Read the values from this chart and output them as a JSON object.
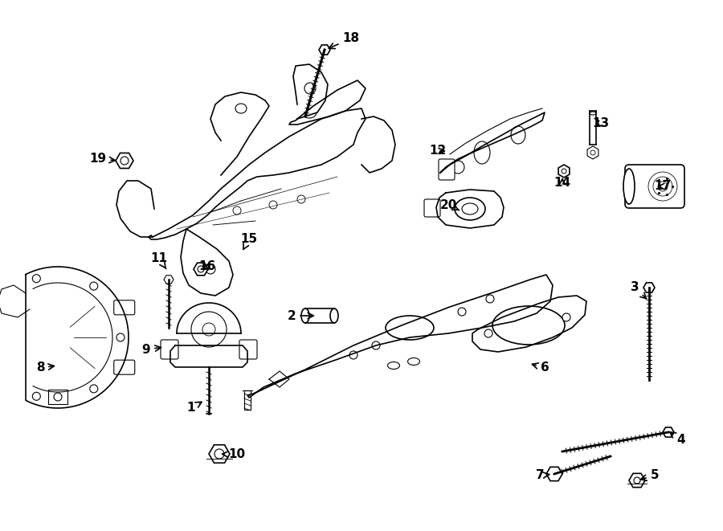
{
  "background_color": "#ffffff",
  "line_color": "#000000",
  "figsize": [
    9.0,
    6.61
  ],
  "dpi": 100,
  "callouts": [
    [
      1,
      238,
      508,
      255,
      498
    ],
    [
      2,
      363,
      393,
      395,
      393
    ],
    [
      3,
      790,
      358,
      808,
      375
    ],
    [
      4,
      848,
      548,
      830,
      535
    ],
    [
      5,
      815,
      592,
      793,
      598
    ],
    [
      6,
      678,
      458,
      658,
      452
    ],
    [
      7,
      672,
      592,
      688,
      590
    ],
    [
      8,
      50,
      458,
      72,
      455
    ],
    [
      9,
      182,
      435,
      205,
      432
    ],
    [
      10,
      295,
      566,
      272,
      565
    ],
    [
      11,
      198,
      322,
      207,
      335
    ],
    [
      12,
      545,
      188,
      558,
      188
    ],
    [
      13,
      748,
      153,
      738,
      160
    ],
    [
      14,
      700,
      228,
      700,
      218
    ],
    [
      15,
      310,
      297,
      302,
      312
    ],
    [
      16,
      258,
      332,
      248,
      332
    ],
    [
      17,
      825,
      232,
      815,
      232
    ],
    [
      18,
      437,
      48,
      405,
      62
    ],
    [
      19,
      122,
      198,
      148,
      200
    ],
    [
      20,
      558,
      255,
      572,
      262
    ]
  ]
}
